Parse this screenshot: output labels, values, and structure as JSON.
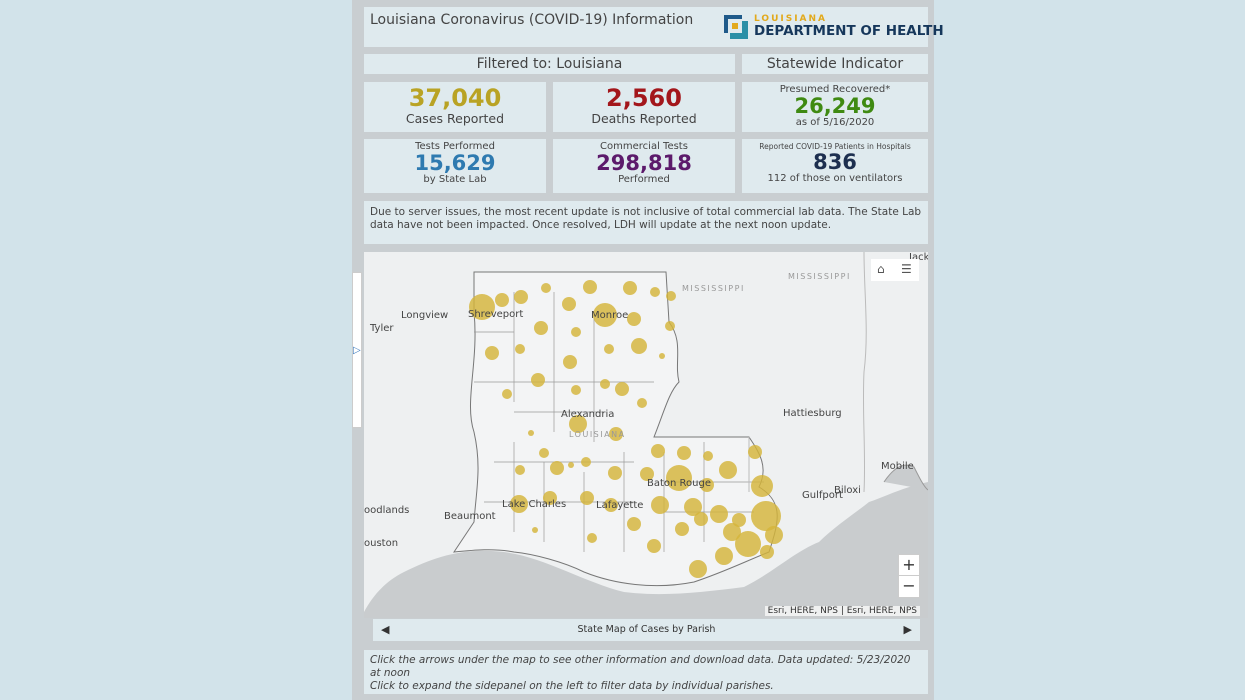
{
  "header": {
    "title": "Louisiana Coronavirus (COVID-19) Information",
    "logo_top": "LOUISIANA",
    "logo_main": "DEPARTMENT OF HEALTH"
  },
  "filter": {
    "label": "Filtered to: Louisiana"
  },
  "statewide": {
    "label": "Statewide Indicator"
  },
  "stats": {
    "cases": {
      "value": "37,040",
      "label": "Cases Reported",
      "color": "#b9a324"
    },
    "deaths": {
      "value": "2,560",
      "label": "Deaths Reported",
      "color": "#a3161b"
    },
    "recovered": {
      "label": "Presumed Recovered*",
      "value": "26,249",
      "sub": "as of 5/16/2020",
      "color": "#3f8a12"
    },
    "tests": {
      "label": "Tests Performed",
      "value": "15,629",
      "sub": "by State Lab",
      "color": "#2e7ab0"
    },
    "commercial": {
      "label": "Commercial Tests",
      "value": "298,818",
      "sub": "Performed",
      "color": "#5c1a6b"
    },
    "hospital": {
      "label": "Reported COVID-19 Patients in Hospitals",
      "value": "836",
      "sub": "112 of those on ventilators",
      "color": "#1d2f4f"
    }
  },
  "notice": "Due to server issues, the most recent update is not inclusive of total commercial lab data. The State Lab data have not been impacted. Once resolved, LDH will update at the next noon update.",
  "map": {
    "labels": {
      "longview": "Longview",
      "tyler": "Tyler",
      "shreveport": "Shreveport",
      "monroe": "Monroe",
      "alexandria": "Alexandria",
      "hattiesburg": "Hattiesburg",
      "mobile": "Mobile",
      "gulfport": "Gulfport",
      "biloxi": "Biloxi",
      "baton_rouge": "Baton Rouge",
      "lafayette": "Lafayette",
      "lake_charles": "Lake Charles",
      "beaumont": "Beaumont",
      "woodlands": "oodlands",
      "houston": "ouston",
      "jackson_fragment": "Jackso",
      "mississippi1": "MISSISSIPPI",
      "mississippi2": "MISSISSIPPI",
      "louisiana": "LOUISIANA"
    },
    "attribution": "Esri, HERE, NPS | Esri, HERE, NPS",
    "zoom_in": "+",
    "zoom_out": "−",
    "home_icon": "⌂",
    "list_icon": "☰",
    "bubble_color": "#d4b43b"
  },
  "nav": {
    "label": "State Map of Cases by Parish",
    "prev": "◀",
    "next": "▶"
  },
  "sidepanel": {
    "arrow": "▷"
  },
  "footer": {
    "line1": "Click the arrows under the map to see other information and download data. Data updated: 5/23/2020 at noon",
    "line2": "Click to expand the sidepanel on the left to filter data by individual parishes."
  }
}
